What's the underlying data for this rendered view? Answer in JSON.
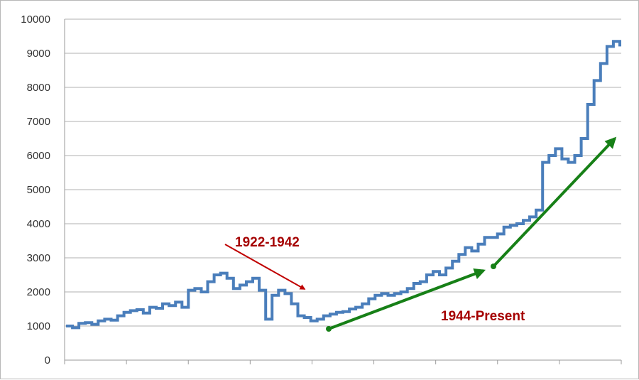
{
  "chart_data": {
    "type": "line",
    "title": "",
    "xlabel": "",
    "ylabel": "",
    "ylim": [
      0,
      10000
    ],
    "y_ticks": [
      "0",
      "1000",
      "2000",
      "3000",
      "4000",
      "5000",
      "6000",
      "7000",
      "8000",
      "9000",
      "10000"
    ],
    "grid": true,
    "series_color": "#4a7ebb",
    "series": [
      {
        "values": [
          1000,
          950,
          1080,
          1100,
          1050,
          1150,
          1200,
          1170,
          1300,
          1400,
          1450,
          1480,
          1380,
          1550,
          1520,
          1650,
          1600,
          1700,
          1550,
          2050,
          2100,
          2000,
          2300,
          2500,
          2550,
          2400,
          2100,
          2200,
          2300,
          2400,
          2050,
          1200,
          1900,
          2050,
          1950,
          1650,
          1300,
          1250,
          1150,
          1200,
          1300,
          1350,
          1400,
          1420,
          1500,
          1550,
          1650,
          1800,
          1900,
          1950,
          1900,
          1950,
          2000,
          2100,
          2250,
          2300,
          2500,
          2600,
          2500,
          2700,
          2900,
          3100,
          3300,
          3200,
          3400,
          3600,
          3600,
          3700,
          3900,
          3950,
          4000,
          4100,
          4200,
          4400,
          5800,
          6000,
          6200,
          5900,
          5800,
          6000,
          6500,
          7500,
          8200,
          8700,
          9200,
          9350,
          9200
        ]
      }
    ],
    "annotations": [
      {
        "label": "1922-1942",
        "color": "#c00000"
      },
      {
        "label": "1944-Present",
        "color": "#a50000"
      }
    ],
    "arrow_colors": {
      "red": "#c00000",
      "green": "#178017"
    }
  }
}
